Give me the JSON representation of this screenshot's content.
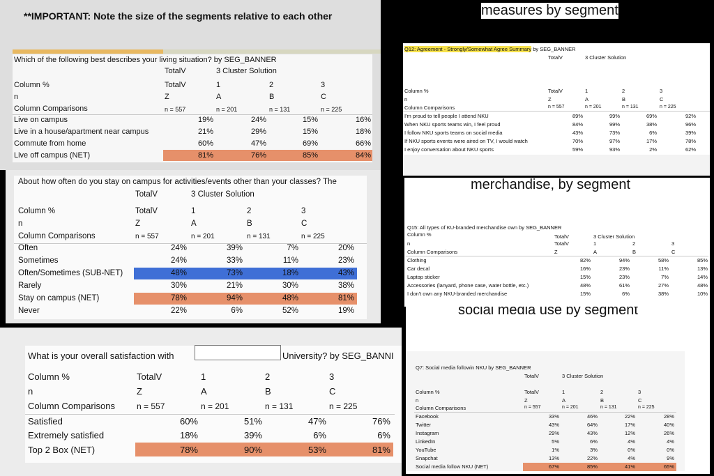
{
  "top_note": "**IMPORTANT: Note the size of the segments relative to each other",
  "headings": {
    "measures": "measures by segment",
    "merch": "merchandise, by segment",
    "social": "social media use by segment"
  },
  "common": {
    "totalv": "TotalV",
    "cluster": "3 Cluster Solution",
    "colpct": "Column %",
    "n": "n",
    "colcomp": "Column Comparisons",
    "seg1": "1",
    "seg2": "2",
    "seg3": "3",
    "z": "Z",
    "a": "A",
    "b": "B",
    "c": "C",
    "n_total": "n = 557",
    "n_a": "n = 201",
    "n_b": "n = 131",
    "n_c": "n = 225"
  },
  "living": {
    "question": "Which of the following best describes your living situation? by SEG_BANNER",
    "rows": [
      {
        "label": "Live on campus",
        "values": [
          "19%",
          "24%",
          "15%",
          "16%"
        ]
      },
      {
        "label": "Live in a house/apartment near campus",
        "values": [
          "21%",
          "29%",
          "15%",
          "18%"
        ]
      },
      {
        "label": "Commute from home",
        "values": [
          "60%",
          "47%",
          "69%",
          "66%"
        ]
      },
      {
        "label": "Live off campus (NET)",
        "values": [
          "81%",
          "76%",
          "85%",
          "84%"
        ]
      }
    ]
  },
  "stay": {
    "question": "About how often do you stay on campus for activities/events other than your classes? The",
    "rows": [
      {
        "label": "Often",
        "values": [
          "24%",
          "39%",
          "7%",
          "20%"
        ]
      },
      {
        "label": "Sometimes",
        "values": [
          "24%",
          "33%",
          "11%",
          "23%"
        ]
      },
      {
        "label": "Often/Sometimes (SUB-NET)",
        "values": [
          "48%",
          "73%",
          "18%",
          "43%"
        ]
      },
      {
        "label": "Rarely",
        "values": [
          "30%",
          "21%",
          "30%",
          "38%"
        ]
      },
      {
        "label": "Stay on campus (NET)",
        "values": [
          "78%",
          "94%",
          "48%",
          "81%"
        ]
      },
      {
        "label": "Never",
        "values": [
          "22%",
          "6%",
          "52%",
          "19%"
        ]
      }
    ]
  },
  "satisfaction": {
    "question_a": "What is your overall satisfaction with",
    "question_b": "University? by SEG_BANNI",
    "rows": [
      {
        "label": "Satisfied",
        "values": [
          "60%",
          "51%",
          "47%",
          "76%"
        ]
      },
      {
        "label": "Extremely satisfied",
        "values": [
          "18%",
          "39%",
          "6%",
          "6%"
        ]
      },
      {
        "label": "Top 2 Box (NET)",
        "values": [
          "78%",
          "90%",
          "53%",
          "81%"
        ]
      }
    ]
  },
  "q12": {
    "title_hl": "Q12: Agreement - Strongly/Somewhat Agree Summary",
    "title_rest": " by SEG_BANNER",
    "rows": [
      {
        "label": "I'm proud to tell people I attend NKU",
        "values": [
          "89%",
          "99%",
          "69%",
          "92%"
        ]
      },
      {
        "label": "When NKU sports teams win, I feel proud",
        "values": [
          "84%",
          "99%",
          "38%",
          "96%"
        ]
      },
      {
        "label": "I follow NKU sports teams on social media",
        "values": [
          "43%",
          "73%",
          "6%",
          "39%"
        ]
      },
      {
        "label": "If NKU sports events were aired on TV, I would watch",
        "values": [
          "70%",
          "97%",
          "17%",
          "78%"
        ]
      },
      {
        "label": "I enjoy conversation about NKU sports",
        "values": [
          "59%",
          "93%",
          "2%",
          "62%"
        ]
      }
    ]
  },
  "q15": {
    "title": "Q15: All types of    KU-branded merchandise own by SEG_BANNER",
    "rows": [
      {
        "label": "Clothing",
        "values": [
          "82%",
          "94%",
          "58%",
          "85%"
        ]
      },
      {
        "label": "Car decal",
        "values": [
          "16%",
          "23%",
          "11%",
          "13%"
        ]
      },
      {
        "label": "Laptop sticker",
        "values": [
          "15%",
          "23%",
          "7%",
          "14%"
        ]
      },
      {
        "label": "Accessories (lanyard, phone case, water bottle, etc.)",
        "values": [
          "48%",
          "61%",
          "27%",
          "48%"
        ]
      },
      {
        "label": "I don't own any NKU-branded merchandise",
        "values": [
          "15%",
          "6%",
          "38%",
          "10%"
        ]
      }
    ]
  },
  "q7": {
    "title": "Q7: Social media followin   NKU by SEG_BANNER",
    "rows": [
      {
        "label": "Facebook",
        "values": [
          "33%",
          "46%",
          "22%",
          "28%"
        ]
      },
      {
        "label": "Twitter",
        "values": [
          "43%",
          "64%",
          "17%",
          "40%"
        ]
      },
      {
        "label": "Instagram",
        "values": [
          "29%",
          "43%",
          "12%",
          "26%"
        ]
      },
      {
        "label": "LinkedIn",
        "values": [
          "5%",
          "6%",
          "4%",
          "4%"
        ]
      },
      {
        "label": "YouTube",
        "values": [
          "1%",
          "3%",
          "0%",
          "0%"
        ]
      },
      {
        "label": "Snapchat",
        "values": [
          "13%",
          "22%",
          "4%",
          "9%"
        ]
      },
      {
        "label": "Social media follow NKU (NET)",
        "values": [
          "67%",
          "85%",
          "41%",
          "65%"
        ]
      }
    ]
  }
}
